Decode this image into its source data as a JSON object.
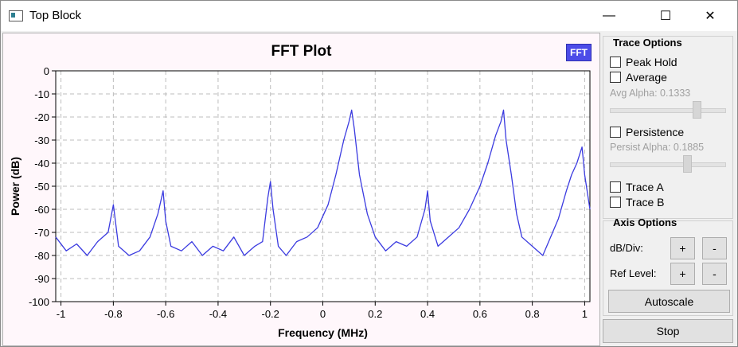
{
  "window": {
    "title": "Top Block",
    "controls": {
      "minimize": "—",
      "maximize": "☐",
      "close": "✕"
    }
  },
  "plot": {
    "title": "FFT Plot",
    "badge": "FFT",
    "trace_color": "#3b3be0"
  },
  "chart_data": {
    "type": "line",
    "xlabel": "Frequency (MHz)",
    "ylabel": "Power (dB)",
    "xlim": [
      -1.02,
      1.02
    ],
    "ylim": [
      -100,
      0
    ],
    "xticks": [
      "-1",
      "-0.8",
      "-0.6",
      "-0.4",
      "-0.2",
      "0",
      "0.2",
      "0.4",
      "0.6",
      "0.8",
      "1"
    ],
    "xtick_values": [
      -1,
      -0.8,
      -0.6,
      -0.4,
      -0.2,
      0,
      0.2,
      0.4,
      0.6,
      0.8,
      1
    ],
    "yticks": [
      "0",
      "-10",
      "-20",
      "-30",
      "-40",
      "-50",
      "-60",
      "-70",
      "-80",
      "-90",
      "-100"
    ],
    "ytick_values": [
      0,
      -10,
      -20,
      -30,
      -40,
      -50,
      -60,
      -70,
      -80,
      -90,
      -100
    ],
    "grid": true,
    "series": [
      {
        "x": [
          -1.02,
          -0.98,
          -0.94,
          -0.9,
          -0.86,
          -0.82,
          -0.8,
          -0.78,
          -0.74,
          -0.7,
          -0.66,
          -0.63,
          -0.61,
          -0.6,
          -0.58,
          -0.54,
          -0.5,
          -0.46,
          -0.42,
          -0.38,
          -0.34,
          -0.3,
          -0.26,
          -0.23,
          -0.21,
          -0.2,
          -0.19,
          -0.17,
          -0.14,
          -0.1,
          -0.06,
          -0.02,
          0.02,
          0.05,
          0.08,
          0.1,
          0.11,
          0.12,
          0.14,
          0.17,
          0.2,
          0.24,
          0.28,
          0.32,
          0.36,
          0.39,
          0.4,
          0.41,
          0.44,
          0.48,
          0.52,
          0.56,
          0.6,
          0.63,
          0.66,
          0.68,
          0.69,
          0.7,
          0.72,
          0.74,
          0.76,
          0.8,
          0.84,
          0.87,
          0.9,
          0.93,
          0.95,
          0.97,
          0.99,
          1.0,
          1.02
        ],
        "y": [
          -72,
          -78,
          -75,
          -80,
          -74,
          -70,
          -58,
          -76,
          -80,
          -78,
          -72,
          -62,
          -52,
          -65,
          -76,
          -78,
          -74,
          -80,
          -76,
          -78,
          -72,
          -80,
          -76,
          -74,
          -55,
          -48,
          -60,
          -76,
          -80,
          -74,
          -72,
          -68,
          -58,
          -45,
          -30,
          -22,
          -17,
          -25,
          -45,
          -62,
          -72,
          -78,
          -74,
          -76,
          -72,
          -60,
          -52,
          -65,
          -76,
          -72,
          -68,
          -60,
          -50,
          -40,
          -28,
          -22,
          -17,
          -30,
          -45,
          -62,
          -72,
          -76,
          -80,
          -72,
          -64,
          -52,
          -45,
          -40,
          -33,
          -45,
          -60
        ]
      }
    ]
  },
  "trace_options": {
    "title": "Trace Options",
    "peak_hold": "Peak Hold",
    "average": "Average",
    "avg_alpha": "Avg Alpha: 0.1333",
    "avg_alpha_value": 0.75,
    "persistence": "Persistence",
    "persist_alpha": "Persist Alpha: 0.1885",
    "persist_alpha_value": 0.67,
    "trace_a": "Trace A",
    "trace_b": "Trace B"
  },
  "axis_options": {
    "title": "Axis Options",
    "db_div": "dB/Div:",
    "ref_level": "Ref Level:",
    "plus": "+",
    "minus": "-",
    "autoscale": "Autoscale"
  },
  "stop": "Stop"
}
